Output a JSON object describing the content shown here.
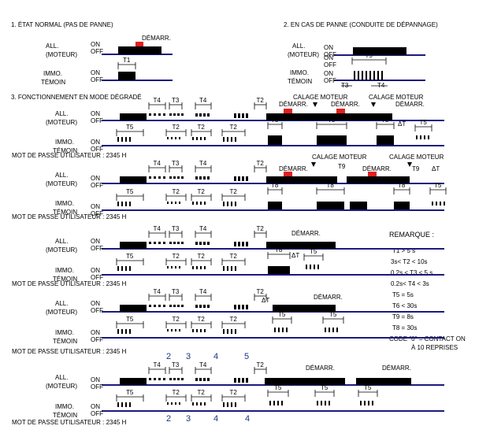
{
  "sections": {
    "normal": "1. ÉTAT NORMAL (PAS DE PANNE)",
    "panne": "2. EN CAS DE PANNE (CONDUITE DE DÉPANNAGE)",
    "degrade": "3. FONCTIONNEMENT EN MODE DÉGRADÉ"
  },
  "labels": {
    "all": "ALL.",
    "moteur": "(MOTEUR)",
    "immo": "IMMO.",
    "temoin": "TÉMOIN",
    "on": "ON",
    "off": "OFF",
    "password": "MOT DE PASSE UTILISATEUR : 2345 H",
    "demarr": "DÉMARR.",
    "calage": "CALAGE MOTEUR",
    "t1": "T1",
    "t2": "T2",
    "t3": "T3",
    "t4": "T4",
    "t5": "T5",
    "t8": "T8",
    "t9": "T9",
    "dt": "ΔT"
  },
  "remarque": {
    "title": "REMARQUE :",
    "lines": [
      "T1 > 5 s",
      "3s< T2 < 10s",
      "0.2s < T3 < 5 s",
      "0.2s< T4 < 3s",
      "T5 = 5s",
      "T6 < 30s",
      "T9 = 8s",
      "T8 = 30s",
      "CODE \"0\" = CONTACT ON",
      "À 10 REPRISES"
    ]
  },
  "digits": {
    "top": [
      "2",
      "3",
      "4",
      "5"
    ],
    "bottom": [
      "2",
      "3",
      "4",
      "4"
    ]
  },
  "colors": {
    "line": "#1a1a80",
    "fill": "#000000",
    "red": "#e02020",
    "digit": "#203080"
  }
}
